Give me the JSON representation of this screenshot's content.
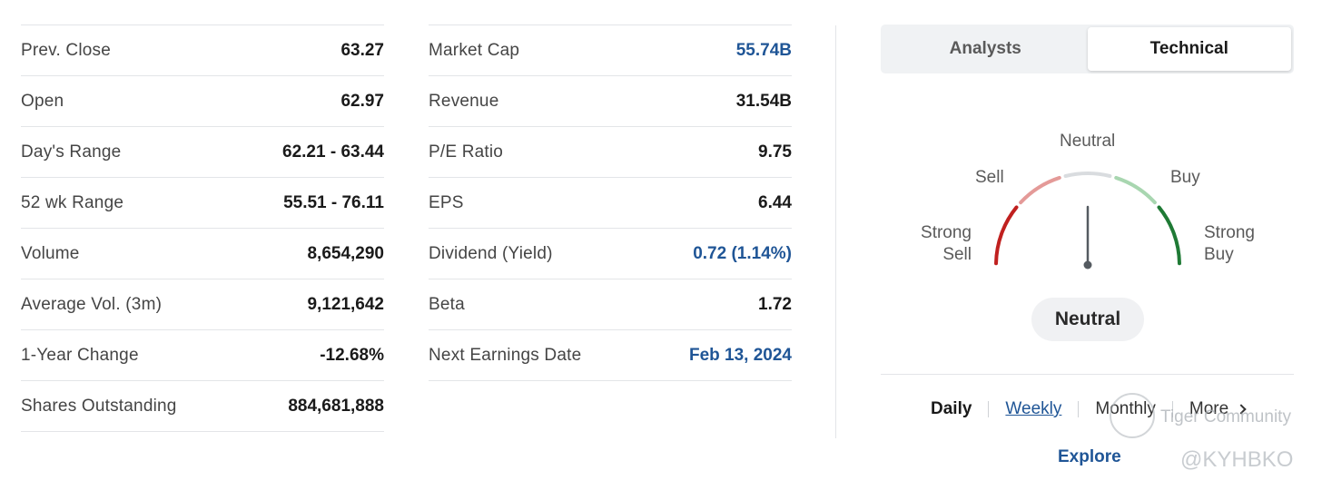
{
  "stats_left": [
    {
      "label": "Prev. Close",
      "value": "63.27",
      "link": false
    },
    {
      "label": "Open",
      "value": "62.97",
      "link": false
    },
    {
      "label": "Day's Range",
      "value": "62.21 - 63.44",
      "link": false
    },
    {
      "label": "52 wk Range",
      "value": "55.51 - 76.11",
      "link": false
    },
    {
      "label": "Volume",
      "value": "8,654,290",
      "link": false
    },
    {
      "label": "Average Vol. (3m)",
      "value": "9,121,642",
      "link": false
    },
    {
      "label": "1-Year Change",
      "value": "-12.68%",
      "link": false
    },
    {
      "label": "Shares Outstanding",
      "value": "884,681,888",
      "link": false
    }
  ],
  "stats_mid": [
    {
      "label": "Market Cap",
      "value": "55.74B",
      "link": true
    },
    {
      "label": "Revenue",
      "value": "31.54B",
      "link": false
    },
    {
      "label": "P/E Ratio",
      "value": "9.75",
      "link": false
    },
    {
      "label": "EPS",
      "value": "6.44",
      "link": false
    },
    {
      "label": "Dividend (Yield)",
      "value": "0.72 (1.14%)",
      "link": true
    },
    {
      "label": "Beta",
      "value": "1.72",
      "link": false
    },
    {
      "label": "Next Earnings Date",
      "value": "Feb 13, 2024",
      "link": true
    }
  ],
  "tabs": {
    "analysts": "Analysts",
    "technical": "Technical",
    "active": "technical"
  },
  "gauge": {
    "labels": {
      "neutral": "Neutral",
      "sell": "Sell",
      "buy": "Buy",
      "strong_sell_1": "Strong",
      "strong_sell_2": "Sell",
      "strong_buy_1": "Strong",
      "strong_buy_2": "Buy"
    },
    "level": 0.5,
    "colors": {
      "strong_sell": "#c0201f",
      "sell": "#e49a98",
      "neutral": "#d9dcdf",
      "buy": "#a8d6b0",
      "strong_buy": "#1f7a35",
      "needle": "#555b61"
    }
  },
  "verdict": "Neutral",
  "periods": {
    "daily": "Daily",
    "weekly": "Weekly",
    "monthly": "Monthly",
    "more": "More"
  },
  "explore": "Explore",
  "watermark": {
    "community": "Tiger Community",
    "handle": "@KYHBKO"
  },
  "colors": {
    "link": "#1f5596",
    "divider": "#e3e5e8"
  }
}
